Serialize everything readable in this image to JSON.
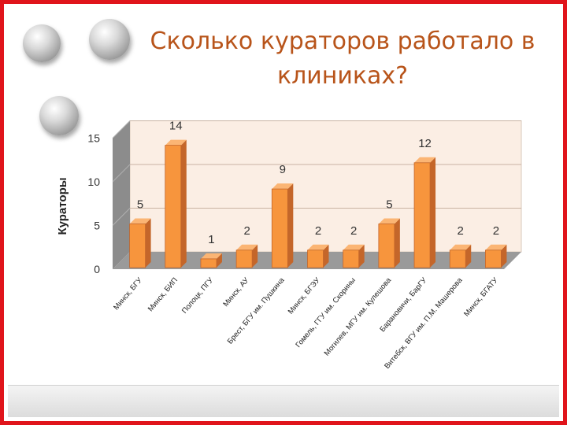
{
  "slide": {
    "title_line1": "Сколько кураторов работало в",
    "title_line2": "клиниках?"
  },
  "chart_data": {
    "type": "bar",
    "title": "Сколько кураторов работало в клиниках?",
    "ylabel": "Кураторы",
    "xlabel": "",
    "ylim": [
      0,
      15
    ],
    "yticks": [
      0,
      5,
      10,
      15
    ],
    "grid": true,
    "three_d": true,
    "categories": [
      "Минск, БГУ",
      "Минск, БИП",
      "Полоцк, ПГУ",
      "Минск, АУ",
      "Брест, БГУ им. Пушкина",
      "Минск, БГЭУ",
      "Гомель, ГГУ им. Скорины",
      "Могилев, МГУ им. Кулешова",
      "Барановичи, БарГУ",
      "Витебск, ВГУ им. П.М. Машерова",
      "Минск, БГАТУ"
    ],
    "values": [
      5,
      14,
      1,
      2,
      9,
      2,
      2,
      5,
      12,
      2,
      2
    ],
    "colors": {
      "bar_front": "#f7953d",
      "bar_side": "#c4662a",
      "bar_top": "#fbb574",
      "plot_back": "#fbeee4",
      "side_wall": "#8c8c8c",
      "floor": "#9a9a9a"
    }
  }
}
